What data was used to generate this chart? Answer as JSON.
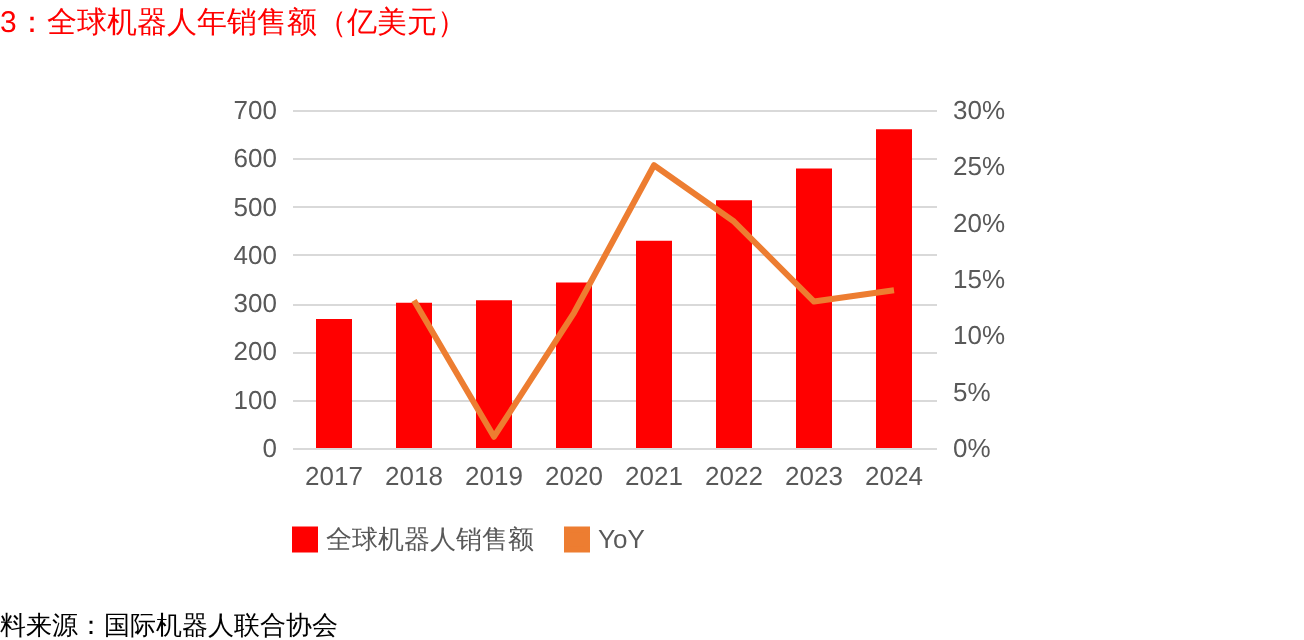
{
  "chart_data": {
    "type": "bar",
    "title": "3：全球机器人年销售额（亿美元）",
    "categories": [
      "2017",
      "2018",
      "2019",
      "2020",
      "2021",
      "2022",
      "2023",
      "2024"
    ],
    "series": [
      {
        "name": "全球机器人销售额",
        "color": "#ff0000",
        "values": [
          267,
          301,
          306,
          343,
          429,
          513,
          579,
          660
        ]
      },
      {
        "name": "YoY",
        "type": "line",
        "axis": "y2",
        "color": "#ed7d31",
        "values": [
          null,
          13.1,
          1.0,
          12.0,
          25.1,
          20.1,
          13.0,
          14.0
        ]
      }
    ],
    "ylim": [
      0,
      700
    ],
    "yticks": [
      0,
      100,
      200,
      300,
      400,
      500,
      600,
      700
    ],
    "y2lim": [
      0,
      30
    ],
    "y2ticks": [
      {
        "value": 0,
        "label": "0%"
      },
      {
        "value": 5,
        "label": "5%"
      },
      {
        "value": 10,
        "label": "10%"
      },
      {
        "value": 15,
        "label": "15%"
      },
      {
        "value": 20,
        "label": "20%"
      },
      {
        "value": 25,
        "label": "25%"
      },
      {
        "value": 30,
        "label": "30%"
      }
    ],
    "grid": "y",
    "legend": "bottom",
    "marker": "none",
    "line_style": "solid",
    "annotations": [
      "料来源：国际机器人联合协会"
    ]
  }
}
